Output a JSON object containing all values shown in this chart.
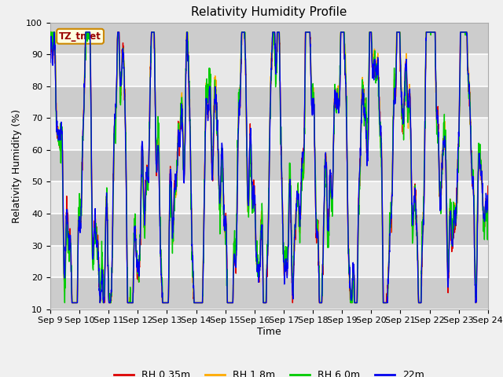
{
  "title": "Relativity Humidity Profile",
  "xlabel": "Time",
  "ylabel": "Relativity Humidity (%)",
  "ylim": [
    10,
    100
  ],
  "yticks": [
    10,
    20,
    30,
    40,
    50,
    60,
    70,
    80,
    90,
    100
  ],
  "xtick_labels": [
    "Sep 9",
    "Sep 10",
    "Sep 11",
    "Sep 12",
    "Sep 13",
    "Sep 14",
    "Sep 15",
    "Sep 16",
    "Sep 17",
    "Sep 18",
    "Sep 19",
    "Sep 20",
    "Sep 21",
    "Sep 22",
    "Sep 23",
    "Sep 24"
  ],
  "station_label": "TZ_tmet",
  "legend_entries": [
    "RH 0.35m",
    "RH 1.8m",
    "RH 6.0m",
    "22m"
  ],
  "line_colors": [
    "#dd0000",
    "#ffaa00",
    "#00cc00",
    "#0000ee"
  ],
  "background_color": "#f0f0f0",
  "plot_bg_color": "#d8d8d8",
  "title_fontsize": 11,
  "axis_label_fontsize": 9,
  "tick_fontsize": 8
}
